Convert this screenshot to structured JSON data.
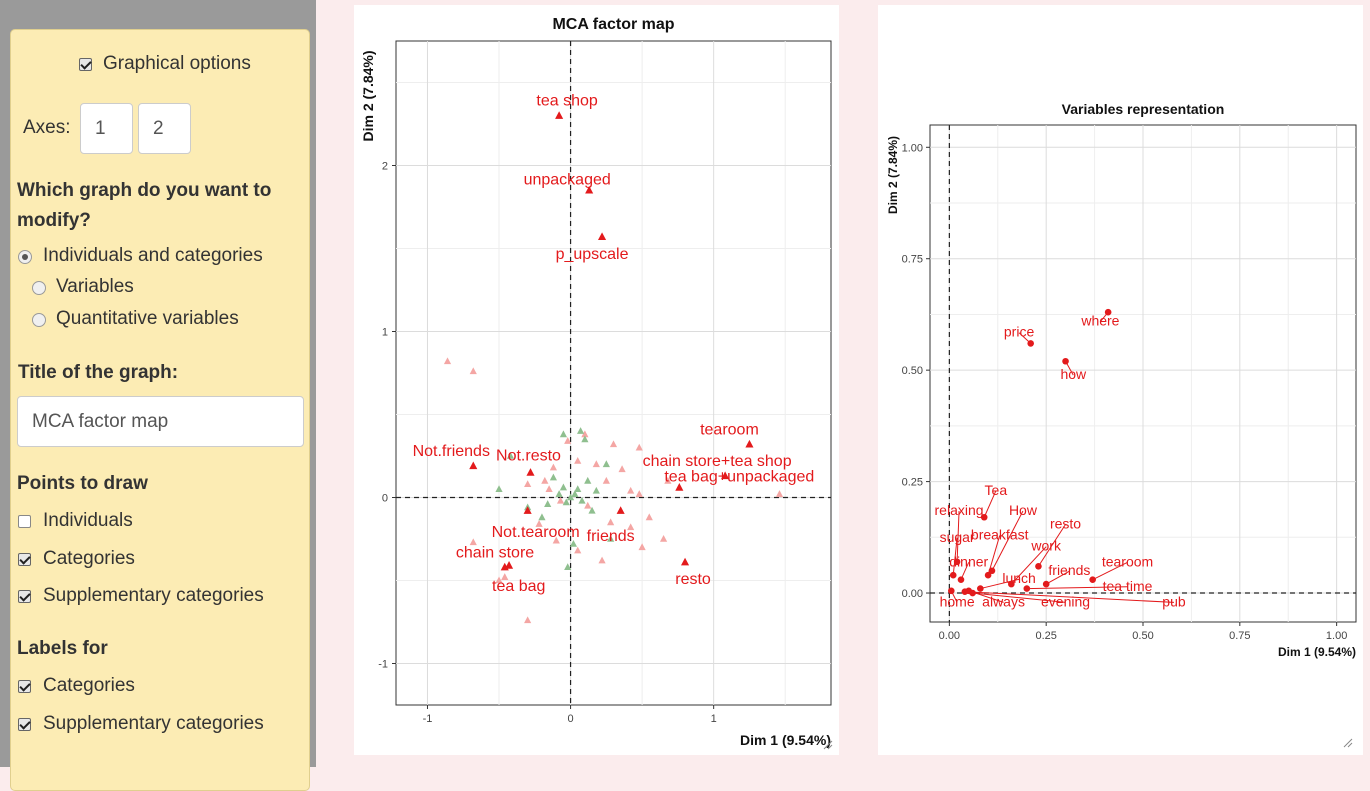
{
  "sidebar": {
    "graphical_options": {
      "label": "Graphical options",
      "checked": true
    },
    "axes": {
      "label": "Axes:",
      "x": "1",
      "y": "2"
    },
    "which_graph": {
      "question": "Which graph do you want to modify?",
      "question_line1": "Which graph do you want to",
      "question_line2": "modify?",
      "options": [
        {
          "label": "Individuals and categories",
          "selected": true
        },
        {
          "label": "Variables",
          "selected": false
        },
        {
          "label": "Quantitative variables",
          "selected": false
        }
      ]
    },
    "title_section": {
      "label": "Title of the graph:",
      "value": "MCA factor map"
    },
    "points_to_draw": {
      "label": "Points to draw",
      "items": [
        {
          "label": "Individuals",
          "checked": false
        },
        {
          "label": "Categories",
          "checked": true
        },
        {
          "label": "Supplementary categories",
          "checked": true
        }
      ]
    },
    "labels_for": {
      "label": "Labels for",
      "items": [
        {
          "label": "Categories",
          "checked": true
        },
        {
          "label": "Supplementary categories",
          "checked": true
        }
      ]
    }
  },
  "chart_data": [
    {
      "type": "scatter",
      "title": "MCA factor map",
      "xlabel": "Dim 1 (9.54%)",
      "ylabel": "Dim 2 (7.84%)",
      "xlim": [
        -1.22,
        1.82
      ],
      "ylim": [
        -1.25,
        2.75
      ],
      "x_ticks": [
        -1,
        0,
        1
      ],
      "y_ticks": [
        -1,
        0,
        1,
        2
      ],
      "grid": true,
      "colors": {
        "categories": "#e31a1c",
        "supplementary_light": "#f4a6a4",
        "supplementary_green": "#8fbf8f"
      },
      "labeled_points": [
        {
          "label": "tea shop",
          "x": -0.08,
          "y": 2.3
        },
        {
          "label": "unpackaged",
          "x": 0.13,
          "y": 1.85
        },
        {
          "label": "p_upscale",
          "x": 0.22,
          "y": 1.57
        },
        {
          "label": "tearoom",
          "x": 1.25,
          "y": 0.32
        },
        {
          "label": "chain store+tea shop",
          "x": 1.08,
          "y": 0.13
        },
        {
          "label": "Not.friends",
          "x": -0.68,
          "y": 0.19
        },
        {
          "label": "Not.resto",
          "x": -0.28,
          "y": 0.15
        },
        {
          "label": "tea bag+unpackaged",
          "x": 0.76,
          "y": 0.06
        },
        {
          "label": "friends",
          "x": 0.35,
          "y": -0.08
        },
        {
          "label": "Not.tearoom",
          "x": -0.3,
          "y": -0.08
        },
        {
          "label": "chain store",
          "x": -0.43,
          "y": -0.41
        },
        {
          "label": "tea bag",
          "x": -0.46,
          "y": -0.42
        },
        {
          "label": "resto",
          "x": 0.8,
          "y": -0.39
        }
      ],
      "supplementary_points_light": [
        [
          -0.86,
          0.82
        ],
        [
          -0.68,
          0.76
        ],
        [
          -0.12,
          0.18
        ],
        [
          -0.3,
          0.08
        ],
        [
          -0.15,
          0.05
        ],
        [
          0.3,
          0.32
        ],
        [
          0.48,
          0.3
        ],
        [
          0.18,
          0.2
        ],
        [
          0.25,
          0.1
        ],
        [
          0.42,
          0.04
        ],
        [
          0.05,
          0.22
        ],
        [
          -0.07,
          -0.02
        ],
        [
          -0.18,
          0.1
        ],
        [
          0.12,
          -0.05
        ],
        [
          0.28,
          -0.15
        ],
        [
          0.42,
          -0.18
        ],
        [
          0.5,
          -0.3
        ],
        [
          0.55,
          -0.12
        ],
        [
          -0.02,
          0.34
        ],
        [
          -0.22,
          -0.16
        ],
        [
          -0.46,
          -0.48
        ],
        [
          -0.5,
          -0.5
        ],
        [
          -0.68,
          -0.27
        ],
        [
          -0.3,
          -0.74
        ],
        [
          0.05,
          -0.32
        ],
        [
          0.22,
          -0.38
        ],
        [
          0.65,
          -0.25
        ],
        [
          0.48,
          0.02
        ],
        [
          0.36,
          0.17
        ],
        [
          1.46,
          0.02
        ],
        [
          0.68,
          0.1
        ],
        [
          -0.1,
          -0.26
        ],
        [
          0.1,
          0.38
        ]
      ],
      "supplementary_points_green": [
        [
          0.0,
          0.0
        ],
        [
          0.03,
          0.02
        ],
        [
          -0.03,
          -0.03
        ],
        [
          0.05,
          0.05
        ],
        [
          -0.05,
          0.06
        ],
        [
          0.08,
          -0.02
        ],
        [
          -0.08,
          0.02
        ],
        [
          0.1,
          0.35
        ],
        [
          0.07,
          0.4
        ],
        [
          -0.05,
          0.38
        ],
        [
          -0.3,
          -0.06
        ],
        [
          -0.2,
          -0.12
        ],
        [
          0.15,
          -0.08
        ],
        [
          0.12,
          0.1
        ],
        [
          -0.12,
          0.12
        ],
        [
          0.02,
          -0.28
        ],
        [
          -0.02,
          -0.42
        ],
        [
          0.28,
          -0.25
        ],
        [
          -0.5,
          0.05
        ],
        [
          -0.42,
          0.25
        ],
        [
          0.25,
          0.2
        ],
        [
          -0.16,
          -0.04
        ],
        [
          0.18,
          0.04
        ]
      ]
    },
    {
      "type": "scatter",
      "title": "Variables representation",
      "xlabel": "Dim 1 (9.54%)",
      "ylabel": "Dim 2 (7.84%)",
      "xlim": [
        -0.05,
        1.05
      ],
      "ylim": [
        -0.065,
        1.05
      ],
      "x_ticks": [
        "0.00",
        "0.25",
        "0.50",
        "0.75",
        "1.00"
      ],
      "y_ticks": [
        "0.00",
        "0.25",
        "0.50",
        "0.75",
        "1.00"
      ],
      "grid": true,
      "colors": {
        "points": "#e31a1c"
      },
      "points": [
        {
          "label": "where",
          "x": 0.41,
          "y": 0.63
        },
        {
          "label": "price",
          "x": 0.21,
          "y": 0.56
        },
        {
          "label": "how",
          "x": 0.3,
          "y": 0.52
        },
        {
          "label": "Tea",
          "x": 0.09,
          "y": 0.17
        },
        {
          "label": "relaxing",
          "x": 0.02,
          "y": 0.07
        },
        {
          "label": "How",
          "x": 0.11,
          "y": 0.05
        },
        {
          "label": "resto",
          "x": 0.23,
          "y": 0.06
        },
        {
          "label": "sugar",
          "x": 0.01,
          "y": 0.04
        },
        {
          "label": "breakfast",
          "x": 0.1,
          "y": 0.04
        },
        {
          "label": "work",
          "x": 0.16,
          "y": 0.02
        },
        {
          "label": "dinner",
          "x": 0.03,
          "y": 0.03
        },
        {
          "label": "friends",
          "x": 0.25,
          "y": 0.02
        },
        {
          "label": "tearoom",
          "x": 0.37,
          "y": 0.03
        },
        {
          "label": "lunch",
          "x": 0.08,
          "y": 0.01
        },
        {
          "label": "tea time",
          "x": 0.2,
          "y": 0.01
        },
        {
          "label": "home",
          "x": 0.005,
          "y": 0.005
        },
        {
          "label": "always",
          "x": 0.05,
          "y": 0.005
        },
        {
          "label": "evening",
          "x": 0.06,
          "y": 0.0
        },
        {
          "label": "pub",
          "x": 0.04,
          "y": 0.003
        }
      ]
    }
  ]
}
